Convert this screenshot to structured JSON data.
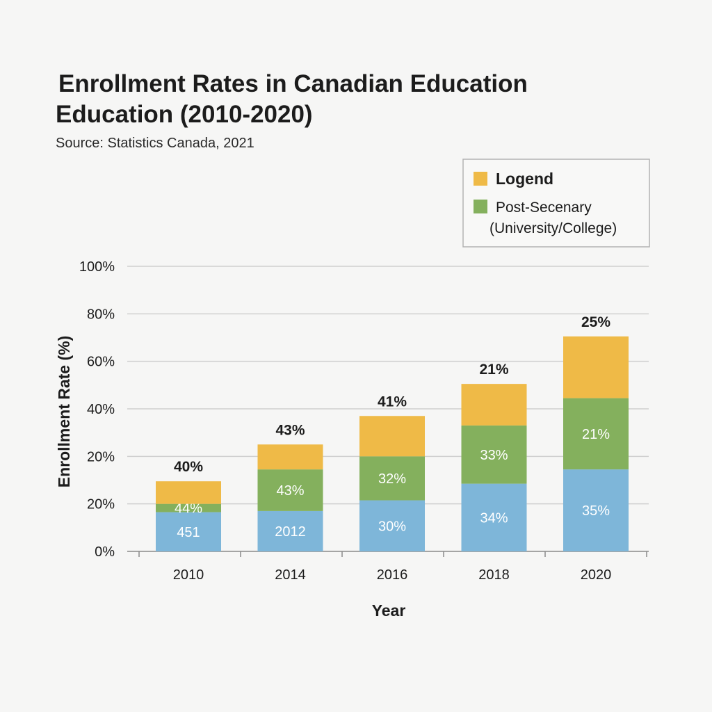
{
  "chart_data": {
    "type": "bar",
    "stacked": true,
    "title_lines": [
      "Enrollment Rates in Canadian Education",
      "Education (2010-2020)"
    ],
    "subtitle": "Source: Statistics Canada, 2021",
    "xlabel": "Year",
    "ylabel": "Enrollment Rate (%)",
    "categories": [
      "2010",
      "2014",
      "2016",
      "2018",
      "2020"
    ],
    "y_tick_labels": [
      "0%",
      "20%",
      "20%",
      "40%",
      "60%",
      "80%",
      "100%"
    ],
    "ylim": [
      0,
      120
    ],
    "grid": true,
    "legend": {
      "placement": "top-right",
      "entries": [
        {
          "label": "Logend",
          "color": "#efba47"
        },
        {
          "label_lines": [
            "Post-Secenary",
            "(University/College)"
          ],
          "color": "#84b05d"
        }
      ]
    },
    "series": [
      {
        "color": "#7eb6d9",
        "values": [
          16.5,
          17,
          21.5,
          28.5,
          34.5
        ],
        "labels": [
          "451",
          "2012",
          "30%",
          "34%",
          "35%"
        ]
      },
      {
        "color": "#84b05d",
        "values": [
          3.5,
          17.5,
          18.5,
          24.5,
          30
        ],
        "labels": [
          "44%",
          "43%",
          "32%",
          "33%",
          "21%"
        ]
      },
      {
        "color": "#efba47",
        "values": [
          9.5,
          10.5,
          17,
          17.5,
          26
        ],
        "labels": [
          "",
          "",
          "",
          "",
          ""
        ]
      }
    ],
    "top_labels": [
      "40%",
      "43%",
      "41%",
      "21%",
      "25%"
    ]
  }
}
